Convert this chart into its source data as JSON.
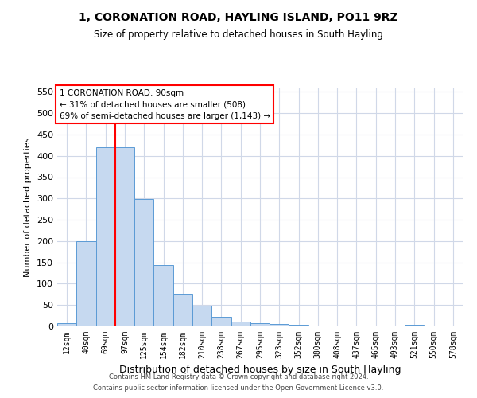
{
  "title": "1, CORONATION ROAD, HAYLING ISLAND, PO11 9RZ",
  "subtitle": "Size of property relative to detached houses in South Hayling",
  "xlabel": "Distribution of detached houses by size in South Hayling",
  "ylabel": "Number of detached properties",
  "categories": [
    "12sqm",
    "40sqm",
    "69sqm",
    "97sqm",
    "125sqm",
    "154sqm",
    "182sqm",
    "210sqm",
    "238sqm",
    "267sqm",
    "295sqm",
    "323sqm",
    "352sqm",
    "380sqm",
    "408sqm",
    "437sqm",
    "465sqm",
    "493sqm",
    "521sqm",
    "550sqm",
    "578sqm"
  ],
  "values": [
    8,
    200,
    420,
    420,
    298,
    143,
    77,
    48,
    23,
    12,
    8,
    5,
    3,
    1,
    0,
    0,
    0,
    0,
    3,
    0,
    0
  ],
  "bar_color": "#c6d9f0",
  "bar_edge_color": "#5b9bd5",
  "red_line_x": 2.5,
  "annotation_title": "1 CORONATION ROAD: 90sqm",
  "annotation_line1": "← 31% of detached houses are smaller (508)",
  "annotation_line2": "69% of semi-detached houses are larger (1,143) →",
  "ylim": [
    0,
    560
  ],
  "yticks": [
    0,
    50,
    100,
    150,
    200,
    250,
    300,
    350,
    400,
    450,
    500,
    550
  ],
  "footer1": "Contains HM Land Registry data © Crown copyright and database right 2024.",
  "footer2": "Contains public sector information licensed under the Open Government Licence v3.0.",
  "bg_color": "#ffffff",
  "grid_color": "#d0d8e8"
}
